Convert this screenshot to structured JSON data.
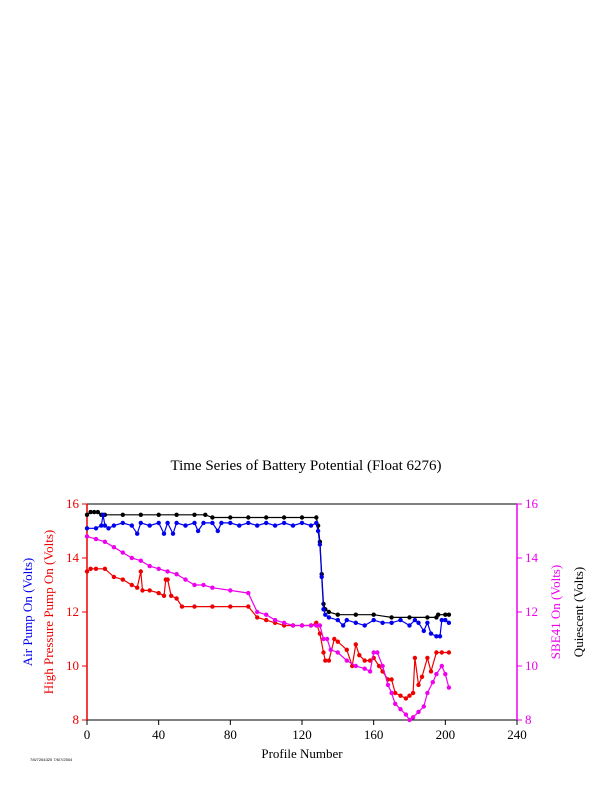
{
  "title": "Time Series of Battery Potential (Float 6276)",
  "footer": "7/6/7264325 7/6/7/2504",
  "chart_data": {
    "type": "line",
    "xlabel": "Profile Number",
    "xlim": [
      0,
      240
    ],
    "xticks": [
      0,
      40,
      80,
      120,
      160,
      200,
      240
    ],
    "left_axis": {
      "labels": [
        "Air Pump On (Volts)",
        "High Pressure Pump On (Volts)"
      ],
      "label_colors": [
        "#0000ee",
        "#ee0000"
      ],
      "ylim": [
        8,
        16
      ],
      "ticks": [
        8,
        10,
        12,
        14,
        16
      ],
      "color": "#ee0000"
    },
    "right_axis": {
      "labels": [
        "SBE41 On (Volts)",
        "Quiescent (Volts)"
      ],
      "label_colors": [
        "#ee00ee",
        "#000000"
      ],
      "ylim": [
        8,
        16
      ],
      "ticks": [
        8,
        10,
        12,
        14,
        16
      ],
      "color": "#ee00ee"
    },
    "series": [
      {
        "color": "#000000",
        "points": [
          [
            0,
            15.6
          ],
          [
            2,
            15.7
          ],
          [
            4,
            15.7
          ],
          [
            6,
            15.7
          ],
          [
            8,
            15.6
          ],
          [
            10,
            15.6
          ],
          [
            20,
            15.6
          ],
          [
            30,
            15.6
          ],
          [
            40,
            15.6
          ],
          [
            50,
            15.6
          ],
          [
            60,
            15.6
          ],
          [
            66,
            15.6
          ],
          [
            70,
            15.5
          ],
          [
            80,
            15.5
          ],
          [
            90,
            15.5
          ],
          [
            100,
            15.5
          ],
          [
            110,
            15.5
          ],
          [
            120,
            15.5
          ],
          [
            128,
            15.5
          ],
          [
            129,
            15.2
          ],
          [
            130,
            14.6
          ],
          [
            131,
            13.4
          ],
          [
            132,
            12.3
          ],
          [
            133,
            12.1
          ],
          [
            135,
            12.0
          ],
          [
            140,
            11.9
          ],
          [
            150,
            11.9
          ],
          [
            160,
            11.9
          ],
          [
            170,
            11.8
          ],
          [
            180,
            11.8
          ],
          [
            190,
            11.8
          ],
          [
            195,
            11.8
          ],
          [
            196,
            11.9
          ],
          [
            200,
            11.9
          ],
          [
            202,
            11.9
          ]
        ]
      },
      {
        "color": "#0000ee",
        "points": [
          [
            0,
            15.1
          ],
          [
            5,
            15.1
          ],
          [
            8,
            15.2
          ],
          [
            9,
            15.6
          ],
          [
            10,
            15.2
          ],
          [
            12,
            15.1
          ],
          [
            15,
            15.2
          ],
          [
            20,
            15.3
          ],
          [
            25,
            15.2
          ],
          [
            28,
            14.9
          ],
          [
            30,
            15.3
          ],
          [
            35,
            15.2
          ],
          [
            40,
            15.3
          ],
          [
            43,
            14.9
          ],
          [
            45,
            15.3
          ],
          [
            48,
            14.9
          ],
          [
            50,
            15.3
          ],
          [
            55,
            15.2
          ],
          [
            60,
            15.3
          ],
          [
            62,
            15.0
          ],
          [
            65,
            15.3
          ],
          [
            70,
            15.3
          ],
          [
            73,
            15.0
          ],
          [
            75,
            15.3
          ],
          [
            80,
            15.3
          ],
          [
            85,
            15.2
          ],
          [
            90,
            15.3
          ],
          [
            95,
            15.2
          ],
          [
            100,
            15.3
          ],
          [
            105,
            15.2
          ],
          [
            110,
            15.3
          ],
          [
            115,
            15.2
          ],
          [
            120,
            15.3
          ],
          [
            125,
            15.2
          ],
          [
            128,
            15.3
          ],
          [
            129,
            15.0
          ],
          [
            130,
            14.5
          ],
          [
            131,
            13.3
          ],
          [
            132,
            12.1
          ],
          [
            133,
            11.9
          ],
          [
            135,
            11.8
          ],
          [
            140,
            11.7
          ],
          [
            143,
            11.5
          ],
          [
            145,
            11.7
          ],
          [
            150,
            11.6
          ],
          [
            155,
            11.5
          ],
          [
            160,
            11.7
          ],
          [
            165,
            11.6
          ],
          [
            170,
            11.6
          ],
          [
            175,
            11.7
          ],
          [
            180,
            11.5
          ],
          [
            183,
            11.7
          ],
          [
            185,
            11.6
          ],
          [
            188,
            11.3
          ],
          [
            190,
            11.6
          ],
          [
            192,
            11.2
          ],
          [
            195,
            11.1
          ],
          [
            197,
            11.1
          ],
          [
            198,
            11.7
          ],
          [
            200,
            11.7
          ],
          [
            202,
            11.6
          ]
        ]
      },
      {
        "color": "#ee0000",
        "points": [
          [
            0,
            13.5
          ],
          [
            2,
            13.6
          ],
          [
            5,
            13.6
          ],
          [
            10,
            13.6
          ],
          [
            15,
            13.3
          ],
          [
            20,
            13.2
          ],
          [
            25,
            13.0
          ],
          [
            28,
            12.9
          ],
          [
            30,
            13.5
          ],
          [
            31,
            12.8
          ],
          [
            35,
            12.8
          ],
          [
            40,
            12.7
          ],
          [
            43,
            12.6
          ],
          [
            44,
            13.2
          ],
          [
            45,
            13.2
          ],
          [
            47,
            12.6
          ],
          [
            50,
            12.5
          ],
          [
            53,
            12.2
          ],
          [
            60,
            12.2
          ],
          [
            70,
            12.2
          ],
          [
            80,
            12.2
          ],
          [
            90,
            12.2
          ],
          [
            95,
            11.8
          ],
          [
            100,
            11.7
          ],
          [
            105,
            11.6
          ],
          [
            110,
            11.5
          ],
          [
            115,
            11.5
          ],
          [
            120,
            11.5
          ],
          [
            125,
            11.5
          ],
          [
            128,
            11.6
          ],
          [
            130,
            11.2
          ],
          [
            132,
            10.5
          ],
          [
            133,
            10.2
          ],
          [
            135,
            10.2
          ],
          [
            138,
            11.0
          ],
          [
            140,
            10.9
          ],
          [
            145,
            10.6
          ],
          [
            148,
            10.0
          ],
          [
            150,
            10.8
          ],
          [
            152,
            10.4
          ],
          [
            155,
            10.2
          ],
          [
            158,
            10.2
          ],
          [
            160,
            10.3
          ],
          [
            163,
            10.0
          ],
          [
            165,
            9.8
          ],
          [
            168,
            9.5
          ],
          [
            170,
            9.5
          ],
          [
            172,
            9.0
          ],
          [
            175,
            8.9
          ],
          [
            178,
            8.8
          ],
          [
            180,
            8.9
          ],
          [
            182,
            9.0
          ],
          [
            183,
            10.3
          ],
          [
            185,
            9.3
          ],
          [
            187,
            9.6
          ],
          [
            190,
            10.3
          ],
          [
            192,
            9.8
          ],
          [
            195,
            10.5
          ],
          [
            198,
            10.5
          ],
          [
            202,
            10.5
          ]
        ]
      },
      {
        "color": "#ee00ee",
        "points": [
          [
            0,
            14.8
          ],
          [
            5,
            14.7
          ],
          [
            10,
            14.6
          ],
          [
            15,
            14.4
          ],
          [
            20,
            14.2
          ],
          [
            25,
            14.0
          ],
          [
            30,
            13.9
          ],
          [
            35,
            13.7
          ],
          [
            40,
            13.6
          ],
          [
            45,
            13.5
          ],
          [
            50,
            13.4
          ],
          [
            55,
            13.2
          ],
          [
            60,
            13.0
          ],
          [
            65,
            13.0
          ],
          [
            70,
            12.9
          ],
          [
            80,
            12.8
          ],
          [
            90,
            12.7
          ],
          [
            95,
            12.0
          ],
          [
            100,
            11.9
          ],
          [
            105,
            11.7
          ],
          [
            110,
            11.6
          ],
          [
            115,
            11.5
          ],
          [
            120,
            11.5
          ],
          [
            125,
            11.5
          ],
          [
            128,
            11.5
          ],
          [
            130,
            11.5
          ],
          [
            132,
            11.0
          ],
          [
            134,
            11.0
          ],
          [
            136,
            10.6
          ],
          [
            140,
            10.5
          ],
          [
            145,
            10.2
          ],
          [
            150,
            10.0
          ],
          [
            155,
            9.9
          ],
          [
            158,
            9.8
          ],
          [
            160,
            10.5
          ],
          [
            162,
            10.5
          ],
          [
            165,
            10.0
          ],
          [
            168,
            9.3
          ],
          [
            170,
            9.0
          ],
          [
            172,
            8.6
          ],
          [
            175,
            8.4
          ],
          [
            178,
            8.2
          ],
          [
            180,
            8.0
          ],
          [
            182,
            8.1
          ],
          [
            185,
            8.3
          ],
          [
            188,
            8.5
          ],
          [
            190,
            9.0
          ],
          [
            193,
            9.4
          ],
          [
            195,
            9.7
          ],
          [
            198,
            10.0
          ],
          [
            200,
            9.7
          ],
          [
            202,
            9.2
          ]
        ]
      }
    ]
  }
}
